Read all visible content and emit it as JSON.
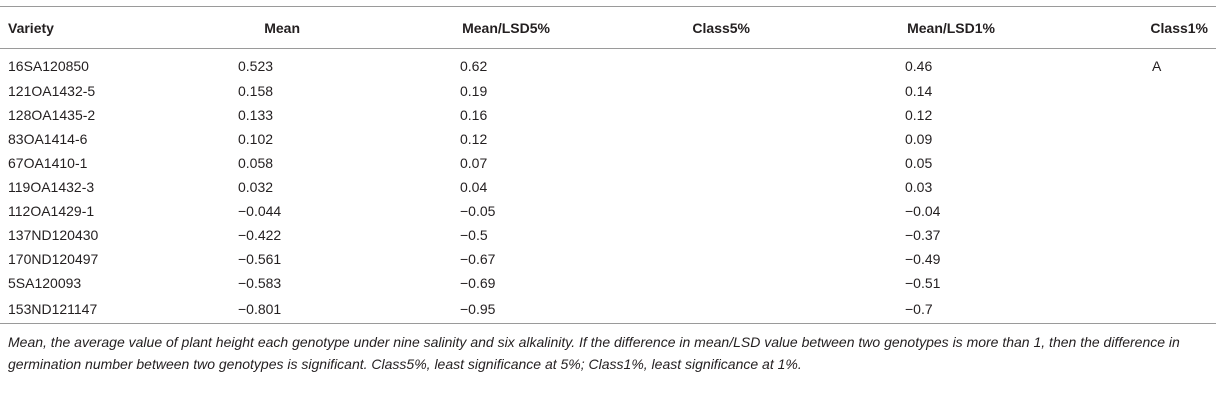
{
  "table": {
    "headers": {
      "variety": "Variety",
      "mean": "Mean",
      "lsd5": "Mean/LSD5%",
      "class5": "Class5%",
      "lsd1": "Mean/LSD1%",
      "class1": "Class1%"
    },
    "rows": [
      {
        "variety": "16SA120850",
        "mean": "0.523",
        "lsd5": "0.62",
        "class5": "",
        "lsd1": "0.46",
        "class1": "A"
      },
      {
        "variety": "121OA1432-5",
        "mean": "0.158",
        "lsd5": "0.19",
        "class5": "",
        "lsd1": "0.14",
        "class1": ""
      },
      {
        "variety": "128OA1435-2",
        "mean": "0.133",
        "lsd5": "0.16",
        "class5": "",
        "lsd1": "0.12",
        "class1": ""
      },
      {
        "variety": "83OA1414-6",
        "mean": "0.102",
        "lsd5": "0.12",
        "class5": "",
        "lsd1": "0.09",
        "class1": ""
      },
      {
        "variety": "67OA1410-1",
        "mean": "0.058",
        "lsd5": "0.07",
        "class5": "",
        "lsd1": "0.05",
        "class1": ""
      },
      {
        "variety": "119OA1432-3",
        "mean": "0.032",
        "lsd5": "0.04",
        "class5": "",
        "lsd1": "0.03",
        "class1": ""
      },
      {
        "variety": "112OA1429-1",
        "mean": "−0.044",
        "lsd5": "−0.05",
        "class5": "",
        "lsd1": "−0.04",
        "class1": ""
      },
      {
        "variety": "137ND120430",
        "mean": "−0.422",
        "lsd5": "−0.5",
        "class5": "",
        "lsd1": "−0.37",
        "class1": ""
      },
      {
        "variety": "170ND120497",
        "mean": "−0.561",
        "lsd5": "−0.67",
        "class5": "",
        "lsd1": "−0.49",
        "class1": ""
      },
      {
        "variety": "5SA120093",
        "mean": "−0.583",
        "lsd5": "−0.69",
        "class5": "",
        "lsd1": "−0.51",
        "class1": ""
      },
      {
        "variety": "153ND121147",
        "mean": "−0.801",
        "lsd5": "−0.95",
        "class5": "",
        "lsd1": "−0.7",
        "class1": ""
      }
    ]
  },
  "footnote": "Mean, the average value of plant height each genotype under nine salinity and six alkalinity. If the difference in mean/LSD value between two genotypes is more than 1, then the difference in germination number between two genotypes is significant. Class5%, least significance at 5%; Class1%, least significance at 1%."
}
